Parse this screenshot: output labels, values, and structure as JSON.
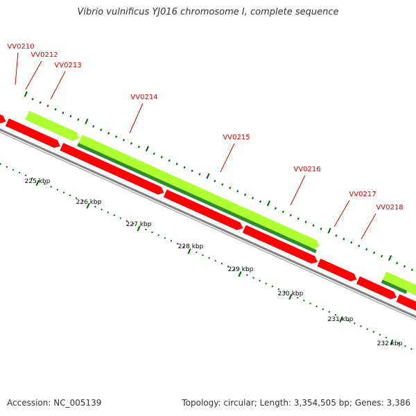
{
  "title": "Vibrio vulnificus YJ016 chromosome I, complete sequence",
  "footer": {
    "accession": "Accession: NC_005139",
    "summary": "Topology: circular; Length: 3,354,505 bp; Genes: 3,386"
  },
  "colors": {
    "forward_cds": "#adff2f",
    "forward_cds_inner": "#2e8b2e",
    "reverse_cds": "#ff0000",
    "rna": "#0000ff",
    "backbone": "#808080",
    "tick": "#006400",
    "gene_label": "#dd0000",
    "kbp_label": "#000000"
  },
  "kbp_labels": [
    "225 kbp",
    "226 kbp",
    "227 kbp",
    "228 kbp",
    "229 kbp",
    "230 kbp",
    "231 kbp",
    "232 kbp"
  ],
  "gene_labels": [
    "VV0210",
    "VV0212",
    "VV0213",
    "VV0214",
    "VV0215",
    "VV0216",
    "VV0217",
    "VV0218"
  ]
}
